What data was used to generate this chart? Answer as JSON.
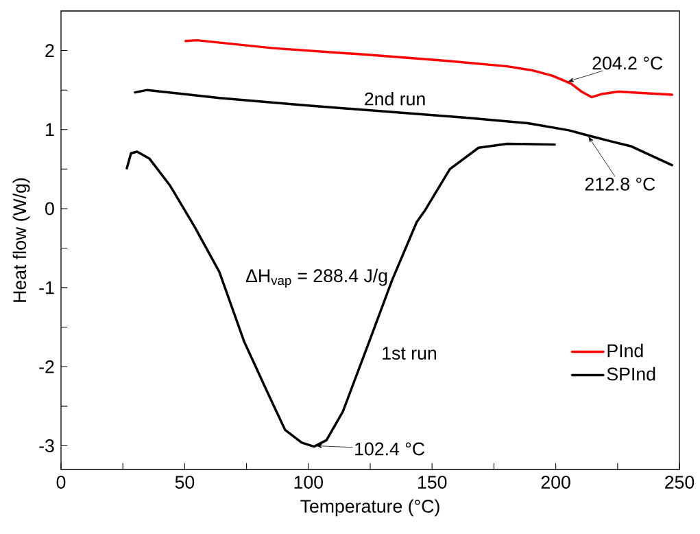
{
  "chart_data": {
    "type": "line",
    "xlabel": "Temperature (°C)",
    "ylabel": "Heat flow (W/g)",
    "xlim": [
      0,
      250
    ],
    "ylim": [
      -3.3,
      2.5
    ],
    "xticks": [
      0,
      {
        "value": 25,
        "label": null
      },
      50,
      {
        "value": 75,
        "label": null
      },
      100,
      {
        "value": 125,
        "label": null
      },
      150,
      {
        "value": 175,
        "label": null
      },
      200,
      {
        "value": 225,
        "label": null
      },
      250
    ],
    "yticks": [
      -3,
      {
        "value": -2.5,
        "label": null
      },
      -2,
      {
        "value": -1.5,
        "label": null
      },
      -1,
      {
        "value": -0.5,
        "label": null
      },
      0,
      {
        "value": 0.5,
        "label": null
      },
      1,
      {
        "value": 1.5,
        "label": null
      },
      2
    ],
    "grid": false,
    "legend": "bottom right",
    "marker": "none",
    "line_style": "solid",
    "series": [
      {
        "name": "PInd",
        "color": "#ff0000",
        "x": [
          50.4,
          54.9,
          85.6,
          122.2,
          155.5,
          180.4,
          190.4,
          198.7,
          206.2,
          210.4,
          214.5,
          218.7,
          225.3,
          247
        ],
        "values": [
          2.12,
          2.13,
          2.03,
          1.95,
          1.87,
          1.8,
          1.75,
          1.68,
          1.58,
          1.48,
          1.41,
          1.45,
          1.48,
          1.44
        ]
      },
      {
        "name": "SPInd",
        "color": "#000000",
        "x": [
          26.6,
          28.3,
          30.8,
          35.8,
          44.1,
          54.0,
          64.0,
          74.0,
          84.0,
          90.6,
          97.3,
          102.3,
          107.3,
          113.9,
          123.9,
          133.9,
          143.8,
          147.2,
          157.2,
          168.8,
          180.4,
          199.6
        ],
        "values": [
          0.51,
          0.7,
          0.72,
          0.63,
          0.29,
          -0.23,
          -0.8,
          -1.68,
          -2.36,
          -2.8,
          -2.96,
          -3.01,
          -2.93,
          -2.57,
          -1.74,
          -0.9,
          -0.17,
          -0.02,
          0.5,
          0.77,
          0.82,
          0.81
        ]
      },
      {
        "color": "#000000",
        "x": [
          29.9,
          34.9,
          64.0,
          97.3,
          130.5,
          163.8,
          188.7,
          205.4,
          213.7,
          221.2,
          230.3,
          247
        ],
        "values": [
          1.47,
          1.5,
          1.4,
          1.31,
          1.23,
          1.15,
          1.08,
          0.99,
          0.92,
          0.86,
          0.79,
          0.55
        ]
      }
    ],
    "annotations": [
      {
        "text": "204.2 °C",
        "x": 204.2,
        "y": 1.6
      },
      {
        "text": "212.8 °C",
        "x": 212.8,
        "y": 0.93
      },
      {
        "text": "102.4 °C",
        "x": 102.4,
        "y": -3.0
      },
      "2nd run",
      "1st run",
      "ΔH$_{vap}$ = 288.4 J/g"
    ]
  }
}
